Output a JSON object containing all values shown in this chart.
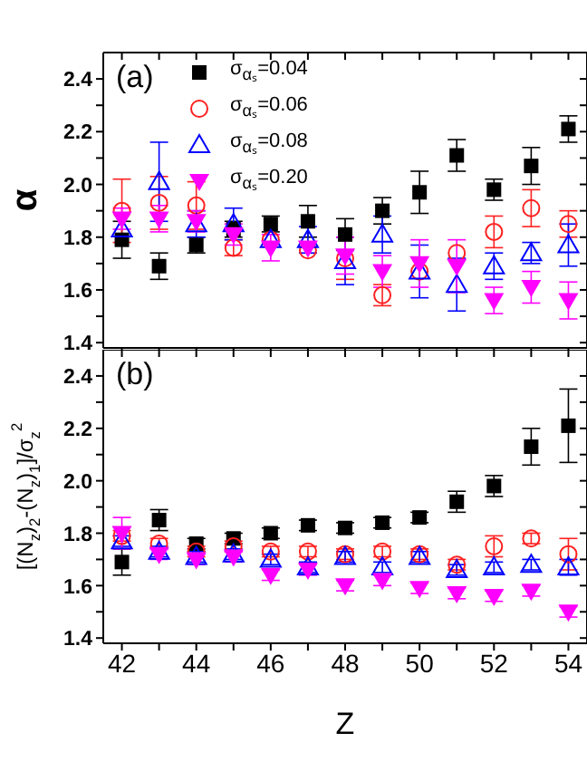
{
  "chart_data": [
    {
      "type": "scatter",
      "ylabel": "α",
      "annotations": [
        "(a)"
      ],
      "legend": "top left",
      "tick_labels": "y",
      "x": [
        42,
        43,
        44,
        45,
        46,
        47,
        48,
        49,
        50,
        51,
        52,
        53,
        54
      ],
      "xlim": [
        41.5,
        54.5
      ],
      "xticks": [
        42,
        {
          "value": 43,
          "label": null
        },
        44,
        {
          "value": 45,
          "label": null
        },
        46,
        {
          "value": 47,
          "label": null
        },
        48,
        {
          "value": 49,
          "label": null
        },
        50,
        {
          "value": 51,
          "label": null
        },
        52,
        {
          "value": 53,
          "label": null
        },
        54
      ],
      "ylim": [
        1.38,
        2.5
      ],
      "yticks": [
        1.4,
        {
          "value": 1.5,
          "label": null
        },
        1.6,
        {
          "value": 1.7,
          "label": null
        },
        1.8,
        {
          "value": 1.9,
          "label": null
        },
        {
          "value": 2,
          "label": "2.0"
        },
        {
          "value": 2.1,
          "label": null
        },
        2.2,
        {
          "value": 2.3,
          "label": null
        },
        2.4
      ],
      "series": [
        {
          "name": "σ$_{αₛ}$=0.04",
          "color": "#000000",
          "marker": "square",
          "values": [
            1.79,
            1.69,
            1.77,
            1.83,
            1.85,
            1.86,
            1.81,
            1.9,
            1.97,
            2.11,
            1.98,
            2.07,
            2.21
          ],
          "errors": [
            0.07,
            0.05,
            0.03,
            0.03,
            0.03,
            0.06,
            0.06,
            0.05,
            0.08,
            0.06,
            0.04,
            0.07,
            0.05
          ]
        },
        {
          "name": "σ$_{αₛ}$=0.06",
          "color": "#ff2020",
          "marker": "circle-open",
          "values": [
            1.9,
            1.93,
            1.92,
            1.76,
            1.79,
            1.75,
            1.72,
            1.58,
            1.67,
            1.74,
            1.82,
            1.91,
            1.85
          ],
          "errors": [
            0.12,
            0.1,
            0.09,
            0.03,
            null,
            null,
            0.08,
            0.04,
            null,
            null,
            0.06,
            0.07,
            0.05
          ]
        },
        {
          "name": "σ$_{αₛ}$=0.08",
          "color": "#0000ff",
          "marker": "triangle-open",
          "values": [
            1.83,
            2.01,
            1.85,
            1.85,
            1.79,
            1.79,
            1.71,
            1.81,
            1.67,
            1.62,
            1.69,
            1.74,
            1.77
          ],
          "errors": [
            null,
            0.15,
            0.05,
            0.06,
            null,
            0.05,
            0.09,
            0.07,
            0.1,
            0.1,
            0.05,
            0.04,
            0.08
          ]
        },
        {
          "name": "σ$_{αₛ}$=0.20",
          "color": "#ff00ff",
          "marker": "triangle-down",
          "values": [
            1.87,
            1.87,
            1.86,
            1.81,
            1.76,
            1.76,
            1.73,
            1.67,
            1.7,
            1.69,
            1.56,
            1.61,
            1.56
          ],
          "errors": [
            0.04,
            0.05,
            0.04,
            0.04,
            0.05,
            null,
            0.07,
            0.06,
            0.09,
            0.1,
            0.05,
            0.06,
            0.07
          ]
        }
      ]
    },
    {
      "type": "scatter",
      "xlabel": "Z",
      "ylabel": "[(N$_{z}$)$_{2}$-(N$_{z}$)$_{1}$]/σ$_{z}$$^{2}$",
      "annotations": [
        "(b)"
      ],
      "x": [
        42,
        43,
        44,
        45,
        46,
        47,
        48,
        49,
        50,
        51,
        52,
        53,
        54
      ],
      "xlim": [
        41.5,
        54.5
      ],
      "xticks": [
        42,
        {
          "value": 43,
          "label": null
        },
        44,
        {
          "value": 45,
          "label": null
        },
        46,
        {
          "value": 47,
          "label": null
        },
        48,
        {
          "value": 49,
          "label": null
        },
        50,
        {
          "value": 51,
          "label": null
        },
        52,
        {
          "value": 53,
          "label": null
        },
        54
      ],
      "ylim": [
        1.38,
        2.5
      ],
      "yticks": [
        1.4,
        {
          "value": 1.5,
          "label": null
        },
        1.6,
        {
          "value": 1.7,
          "label": null
        },
        1.8,
        {
          "value": 1.9,
          "label": null
        },
        {
          "value": 2,
          "label": "2.0"
        },
        {
          "value": 2.1,
          "label": null
        },
        2.2,
        {
          "value": 2.3,
          "label": null
        },
        2.4
      ],
      "series": [
        {
          "color": "#000000",
          "marker": "square",
          "values": [
            1.69,
            1.85,
            1.76,
            1.78,
            1.8,
            1.83,
            1.82,
            1.84,
            1.86,
            1.92,
            1.98,
            2.13,
            2.21
          ],
          "errors": [
            0.05,
            0.04,
            0.02,
            0.02,
            0.02,
            0.02,
            0.02,
            0.02,
            0.02,
            0.04,
            0.04,
            0.07,
            0.14
          ]
        },
        {
          "color": "#ff2020",
          "marker": "circle-open",
          "values": [
            1.79,
            1.76,
            1.73,
            1.75,
            1.73,
            1.73,
            1.72,
            1.73,
            1.72,
            1.68,
            1.75,
            1.78,
            1.72
          ],
          "errors": [
            0.02,
            0.02,
            0.02,
            0.02,
            0.02,
            0.02,
            0.02,
            0.02,
            0.02,
            0.02,
            0.04,
            0.02,
            0.06
          ]
        },
        {
          "color": "#0000ff",
          "marker": "triangle-open",
          "values": [
            1.77,
            1.73,
            1.71,
            1.72,
            1.7,
            1.67,
            1.71,
            1.67,
            1.71,
            1.66,
            1.67,
            1.68,
            1.67
          ],
          "errors": [
            0.02,
            0.02,
            0.02,
            0.02,
            0.02,
            0.02,
            0.02,
            0.02,
            0.02,
            0.02,
            0.02,
            0.02,
            0.03
          ]
        },
        {
          "color": "#ff00ff",
          "marker": "triangle-down",
          "values": [
            1.8,
            1.72,
            1.7,
            1.71,
            1.64,
            1.66,
            1.6,
            1.62,
            1.59,
            1.57,
            1.56,
            1.58,
            1.5
          ],
          "errors": [
            0.06,
            0.02,
            0.02,
            0.02,
            0.02,
            0.02,
            0.02,
            0.02,
            0.02,
            0.02,
            0.02,
            0.02,
            0.02
          ]
        }
      ]
    }
  ]
}
